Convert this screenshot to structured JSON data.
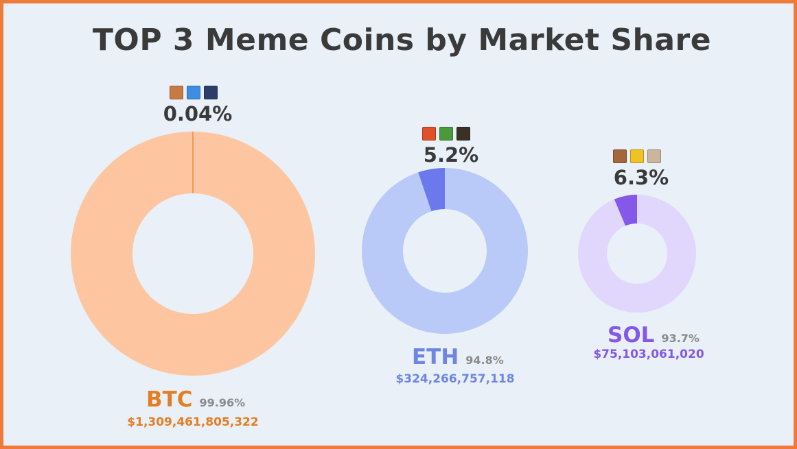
{
  "title": "TOP 3 Meme Coins by Market Share",
  "chart_data": {
    "type": "pie",
    "title": "TOP 3 Meme Coins by Market Share",
    "charts": [
      {
        "coin": "BTC",
        "meme_share_label": "0.04%",
        "other_share_label": "99.96%",
        "market_cap": "$1,309,461,805,322",
        "values": [
          0.04,
          99.96
        ],
        "colors": {
          "main": "#fdc6a1",
          "meme": "#e57d23",
          "text": "#e57d23"
        },
        "meme_icons": [
          "orange-icon",
          "blue-icon",
          "navy-icon"
        ]
      },
      {
        "coin": "ETH",
        "meme_share_label": "5.2%",
        "other_share_label": "94.8%",
        "market_cap": "$324,266,757,118",
        "values": [
          5.2,
          94.8
        ],
        "colors": {
          "main": "#b9caf8",
          "meme": "#6c79ec",
          "text": "#6f86e0"
        },
        "meme_icons": [
          "red-icon",
          "green-icon",
          "dark-icon"
        ]
      },
      {
        "coin": "SOL",
        "meme_share_label": "6.3%",
        "other_share_label": "93.7%",
        "market_cap": "$75,103,061,020",
        "values": [
          6.3,
          93.7
        ],
        "colors": {
          "main": "#e1d7fd",
          "meme": "#8458e8",
          "text": "#8458e8"
        },
        "meme_icons": [
          "brown-icon",
          "yellow-icon",
          "beige-icon"
        ]
      }
    ]
  }
}
